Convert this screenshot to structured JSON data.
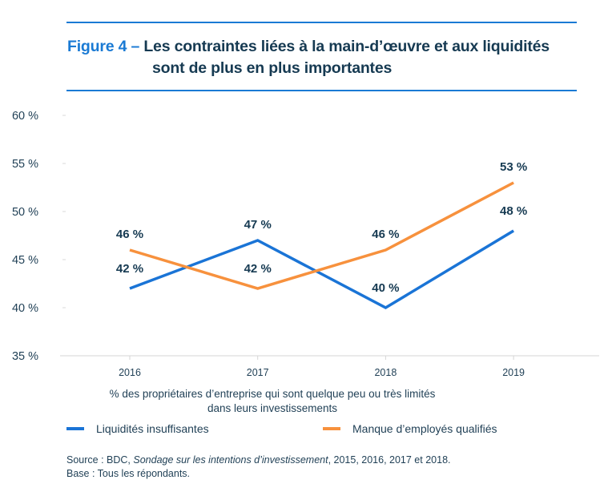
{
  "header": {
    "figure_label": "Figure 4 –",
    "title_line1": "Les contraintes liées à la main-d’œuvre et aux liquidités",
    "title_line2": "sont de plus en plus importantes"
  },
  "colors": {
    "accent": "#1a7ad4",
    "series_blue": "#1a74d6",
    "series_orange": "#f7913d",
    "text_dark": "#163a52"
  },
  "chart_data": {
    "type": "line",
    "title": "Figure 4 – Les contraintes liées à la main-d’œuvre et aux liquidités sont de plus en plus importantes",
    "x": [
      "2016",
      "2017",
      "2018",
      "2019"
    ],
    "series": [
      {
        "name": "Liquidités insuffisantes",
        "color": "#1a74d6",
        "values": [
          42,
          47,
          40,
          48
        ],
        "labels": [
          "42 %",
          "47 %",
          "40 %",
          "48 %"
        ]
      },
      {
        "name": "Manque d’employés qualifiés",
        "color": "#f7913d",
        "values": [
          46,
          42,
          46,
          53
        ],
        "labels": [
          "46 %",
          "42 %",
          "46 %",
          "53 %"
        ]
      }
    ],
    "yticks": [
      35,
      40,
      45,
      50,
      55,
      60
    ],
    "ytick_labels": [
      "35 %",
      "40 %",
      "45 %",
      "50 %",
      "55 %",
      "60 %"
    ],
    "ylim": [
      35,
      60
    ],
    "xlabel": "% des propriétaires d’entreprise qui sont quelque peu ou très limités dans leurs investissements",
    "xlabel_line1": "% des propriétaires d’entreprise qui sont quelque peu ou très limités",
    "xlabel_line2": "dans leurs investissements",
    "ylabel": "",
    "grid": false,
    "legend_position": "bottom"
  },
  "legend": {
    "items": [
      {
        "label": "Liquidités insuffisantes"
      },
      {
        "label": "Manque d’employés qualifiés"
      }
    ]
  },
  "footer": {
    "source_prefix": "Source : BDC, ",
    "source_title": "Sondage sur les intentions d’investissement",
    "source_suffix": ", 2015, 2016, 2017 et 2018.",
    "base": "Base : Tous les répondants."
  }
}
